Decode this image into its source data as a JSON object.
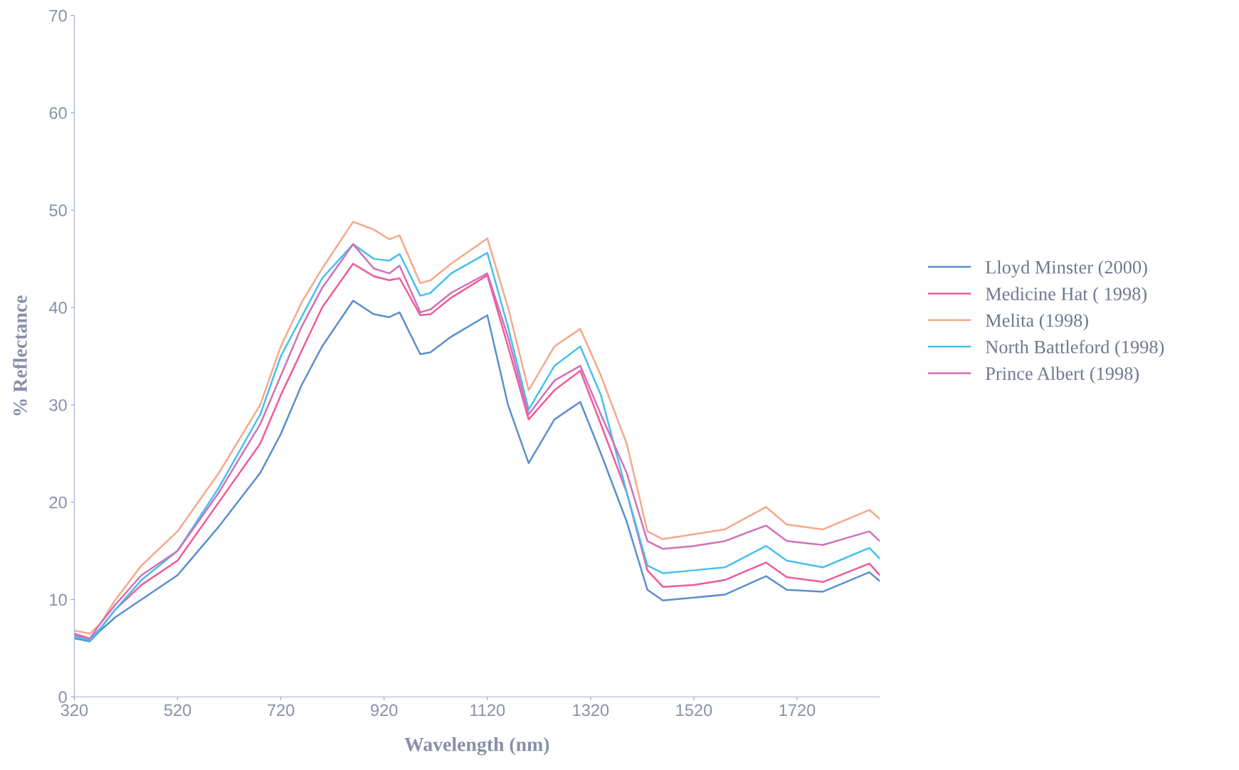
{
  "chart_data": {
    "type": "line",
    "xlabel": "Wavelength (nm)",
    "ylabel": "% Reflectance",
    "x": [
      320,
      350,
      370,
      400,
      450,
      520,
      600,
      680,
      720,
      760,
      800,
      860,
      900,
      930,
      950,
      990,
      1010,
      1050,
      1120,
      1160,
      1200,
      1250,
      1300,
      1340,
      1390,
      1430,
      1460,
      1520,
      1580,
      1660,
      1700,
      1770,
      1860,
      1880
    ],
    "series": [
      {
        "name": "Lloyd Minster (2000)",
        "color": "#5a8fd0",
        "values": [
          6.0,
          5.7,
          6.8,
          8.2,
          10,
          12.5,
          17.5,
          23,
          27,
          32,
          36,
          40.7,
          39.3,
          39,
          39.5,
          35.2,
          35.4,
          37,
          39.2,
          30,
          24,
          28.5,
          30.3,
          25,
          18,
          11,
          9.9,
          10.2,
          10.5,
          12.4,
          11,
          10.8,
          12.8,
          11.9
        ]
      },
      {
        "name": "Medicine Hat ( 1998)",
        "color": "#f05a9a",
        "values": [
          6.3,
          5.9,
          7.0,
          9,
          11.5,
          14,
          20,
          26,
          31,
          35.5,
          40,
          44.5,
          43.2,
          42.8,
          43,
          39.2,
          39.3,
          41,
          43.3,
          36,
          28.5,
          31.5,
          33.5,
          28,
          21,
          13,
          11.3,
          11.5,
          12,
          13.8,
          12.3,
          11.8,
          13.7,
          12.5
        ]
      },
      {
        "name": "Melita (1998)",
        "color": "#f5a88a",
        "values": [
          6.8,
          6.5,
          7.5,
          10,
          13.5,
          17,
          23,
          30,
          36,
          40.5,
          44,
          48.8,
          48,
          47,
          47.4,
          42.5,
          42.8,
          44.5,
          47.1,
          40,
          31.5,
          36,
          37.8,
          33,
          26,
          17,
          16.2,
          16.7,
          17.2,
          19.5,
          17.7,
          17.2,
          19.2,
          18.3
        ]
      },
      {
        "name": "North Battleford (1998)",
        "color": "#45c0ee",
        "values": [
          6.2,
          5.8,
          7,
          9,
          12,
          15,
          21.5,
          29,
          35,
          39,
          43,
          46.5,
          45,
          44.8,
          45.5,
          41.2,
          41.5,
          43.5,
          45.6,
          38,
          29.5,
          34,
          36,
          31,
          21,
          13.5,
          12.7,
          13,
          13.3,
          15.5,
          14,
          13.3,
          15.3,
          14.2
        ]
      },
      {
        "name": "Prince Albert (1998)",
        "color": "#d070b8",
        "values": [
          6.5,
          6,
          7.5,
          9.5,
          12.5,
          15,
          21,
          28,
          33,
          38,
          42,
          46.5,
          44,
          43.5,
          44.3,
          39.5,
          39.8,
          41.5,
          43.5,
          37,
          29,
          32.5,
          34,
          29,
          23,
          16,
          15.2,
          15.5,
          16,
          17.6,
          16,
          15.6,
          17,
          16
        ]
      }
    ],
    "xlim": [
      320,
      1880
    ],
    "xticks": [
      320,
      520,
      720,
      920,
      1120,
      1320,
      1520,
      1720
    ],
    "ylim": [
      0,
      70
    ],
    "yticks": [
      0,
      10,
      20,
      30,
      40,
      50,
      60,
      70
    ],
    "grid": false,
    "legend": "right",
    "marker": "none",
    "line_style": "solid"
  }
}
